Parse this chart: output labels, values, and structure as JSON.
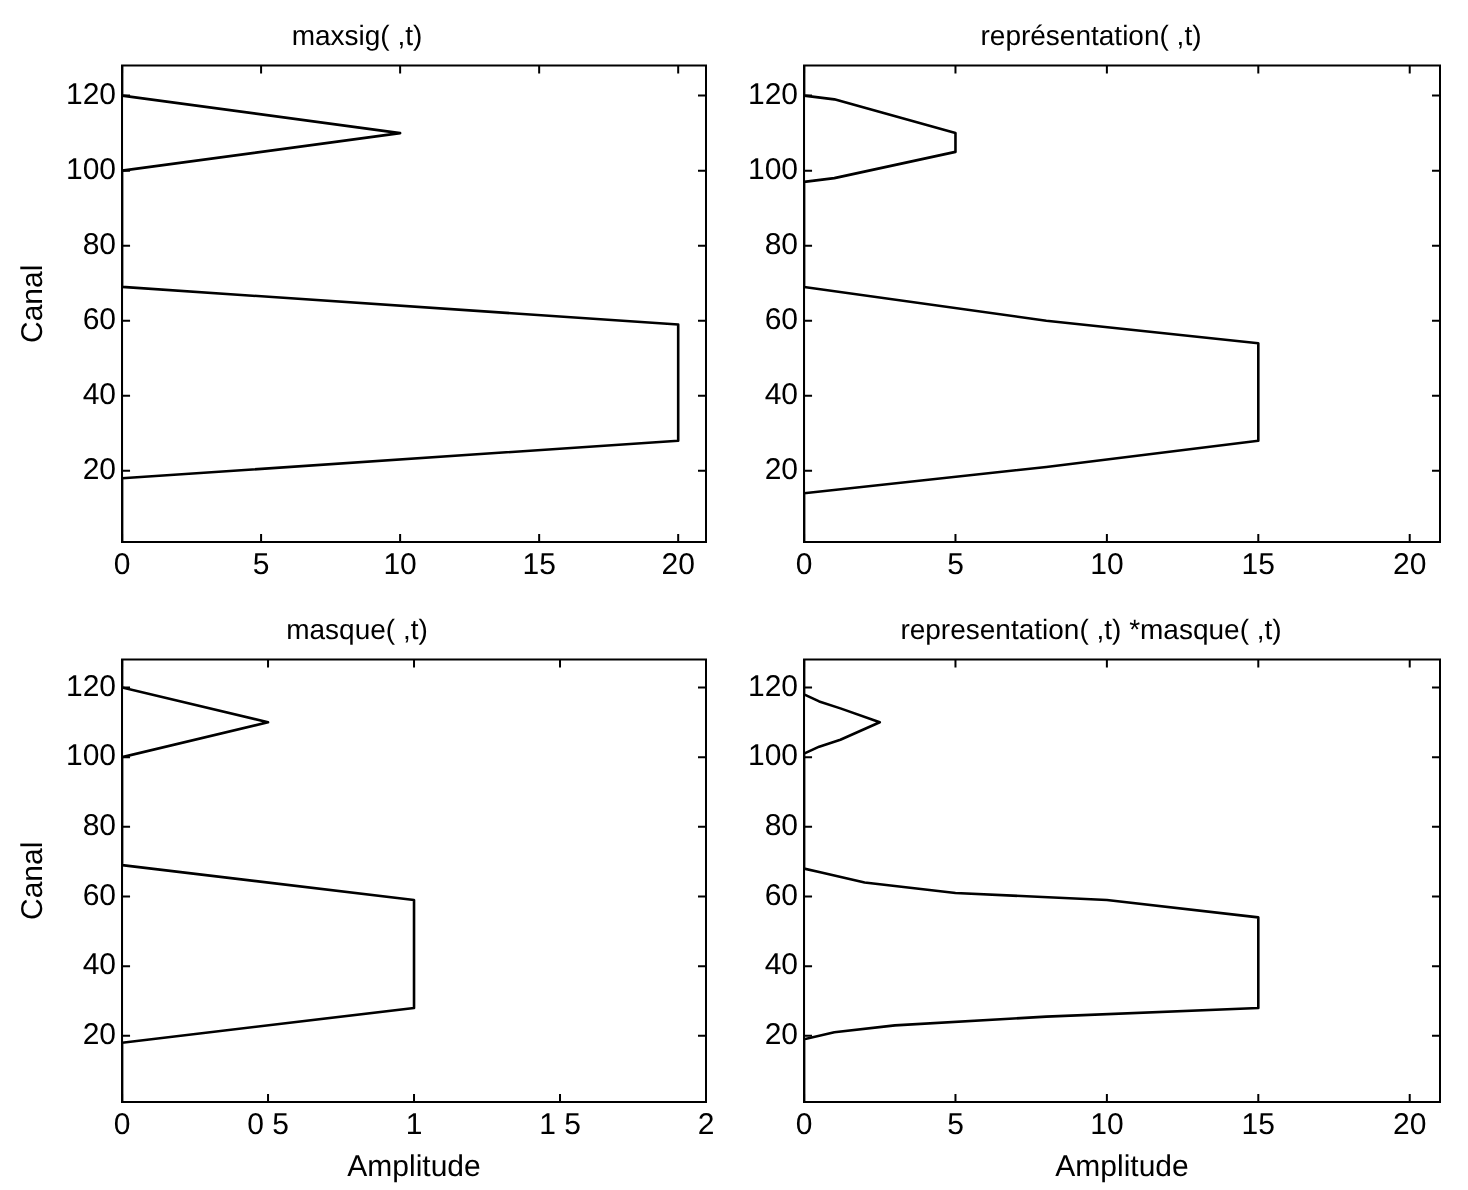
{
  "chart_data": [
    {
      "type": "line",
      "title": "maxsig( ,t)",
      "ylabel": "Canal",
      "xlim": [
        0,
        21
      ],
      "xticks": [
        0,
        5,
        10,
        15,
        20
      ],
      "ylim": [
        1,
        128
      ],
      "yticks": [
        20,
        40,
        60,
        80,
        100,
        120
      ],
      "grid": false,
      "legend": false,
      "marker": "none",
      "line_style": "solid",
      "series": [
        {
          "color": "#000000",
          "x": [
            0,
            0,
            20,
            20,
            0,
            0,
            10,
            0,
            0
          ],
          "values": [
            1,
            18,
            28,
            59,
            69,
            100,
            110,
            120,
            128
          ]
        }
      ]
    },
    {
      "type": "line",
      "title": "représentation( ,t)",
      "xlim": [
        0,
        21
      ],
      "xticks": [
        0,
        5,
        10,
        15,
        20
      ],
      "ylim": [
        1,
        128
      ],
      "yticks": [
        20,
        40,
        60,
        80,
        100,
        120
      ],
      "grid": false,
      "legend": false,
      "marker": "none",
      "line_style": "solid",
      "series": [
        {
          "color": "#000000",
          "x": [
            0,
            0,
            8,
            15,
            15,
            8,
            0,
            0,
            1,
            5,
            5,
            1,
            0,
            0
          ],
          "values": [
            1,
            14,
            21,
            28,
            54,
            60,
            69,
            97,
            98,
            105,
            110,
            119,
            120,
            128
          ]
        }
      ]
    },
    {
      "type": "line",
      "title": "masque( ,t)",
      "xlabel": "Amplitude",
      "ylabel": "Canal",
      "xlim": [
        0,
        2
      ],
      "xticks": [
        0,
        {
          "value": 0.5,
          "label": "0 5"
        },
        1,
        {
          "value": 1.5,
          "label": "1 5"
        },
        2
      ],
      "ylim": [
        1,
        128
      ],
      "yticks": [
        20,
        40,
        60,
        80,
        100,
        120
      ],
      "grid": false,
      "legend": false,
      "marker": "none",
      "line_style": "solid",
      "series": [
        {
          "color": "#000000",
          "x": [
            0,
            0,
            1,
            1,
            0,
            0,
            0.5,
            0,
            0
          ],
          "values": [
            1,
            18,
            28,
            59,
            69,
            100,
            110,
            120,
            128
          ]
        }
      ]
    },
    {
      "type": "line",
      "title": "representation( ,t) *masque( ,t)",
      "xlabel": "Amplitude",
      "xlim": [
        0,
        21
      ],
      "xticks": [
        0,
        5,
        10,
        15,
        20
      ],
      "ylim": [
        1,
        128
      ],
      "yticks": [
        20,
        40,
        60,
        80,
        100,
        120
      ],
      "grid": false,
      "legend": false,
      "marker": "none",
      "line_style": "solid",
      "series": [
        {
          "color": "#000000",
          "x": [
            0,
            0,
            1,
            3,
            8,
            15,
            15,
            10,
            5,
            2,
            0.5,
            0,
            0,
            0.5,
            1.2,
            2.5,
            1.2,
            0.5,
            0,
            0
          ],
          "values": [
            1,
            19,
            21,
            23,
            25.5,
            28,
            54,
            59,
            61,
            64,
            67,
            68,
            101,
            103,
            105,
            110,
            114,
            116,
            118,
            128
          ]
        }
      ]
    }
  ]
}
